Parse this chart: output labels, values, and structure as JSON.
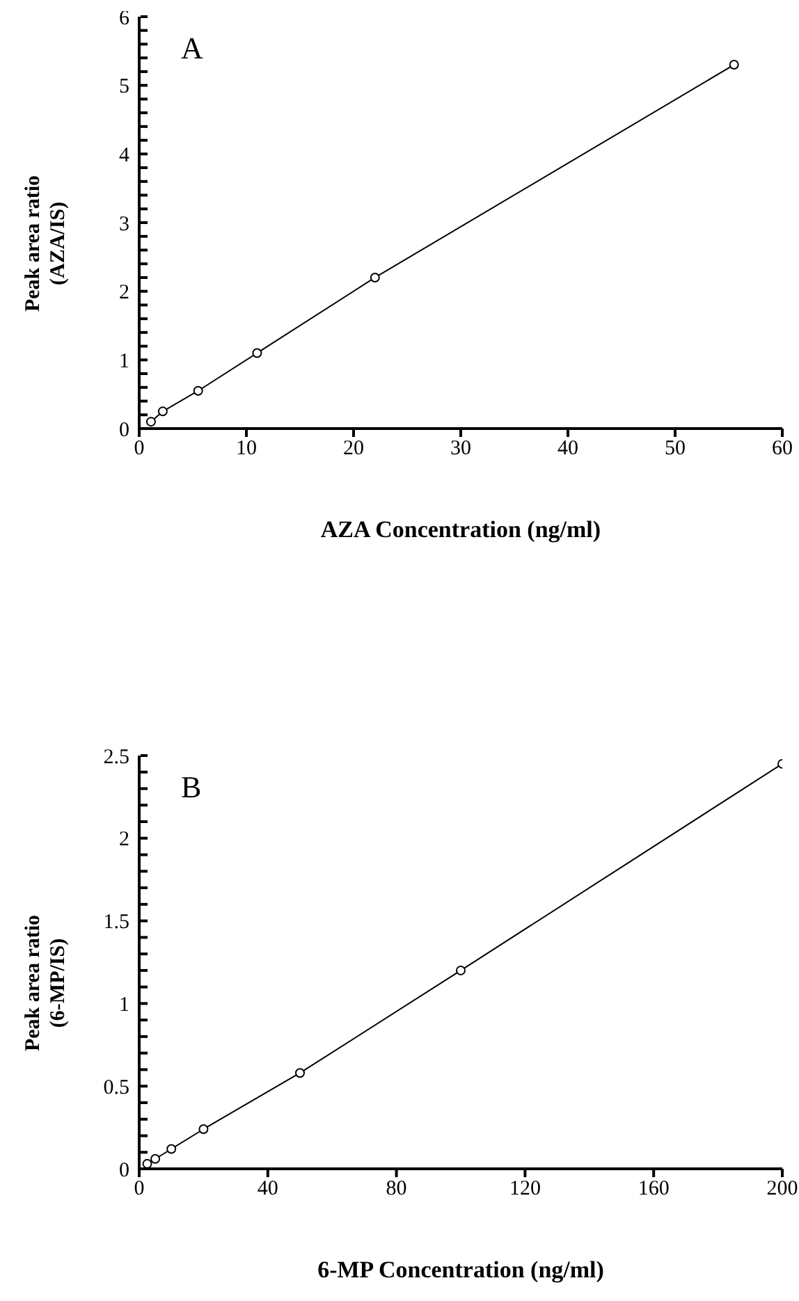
{
  "chart_data": [
    {
      "type": "line",
      "title": "A",
      "xlabel": "AZA Concentration (ng/ml)",
      "ylabel": "Peak area ratio (AZA/IS)",
      "marker": "circle",
      "line_style": "solid",
      "grid": false,
      "series": [
        {
          "color": "#000000",
          "x": [
            1.1,
            2.2,
            5.5,
            11,
            22,
            55.5
          ],
          "values": [
            0.1,
            0.25,
            0.55,
            1.1,
            2.2,
            5.3
          ]
        }
      ],
      "xlim": [
        0,
        60
      ],
      "xticks": [
        0,
        10,
        20,
        30,
        40,
        50,
        60
      ],
      "ylim": [
        0,
        6
      ],
      "yticks": [
        0,
        {
          "value": 0.2,
          "label": null
        },
        {
          "value": 0.4,
          "label": null
        },
        {
          "value": 0.6,
          "label": null
        },
        {
          "value": 0.8,
          "label": null
        },
        1,
        {
          "value": 1.2,
          "label": null
        },
        {
          "value": 1.4,
          "label": null
        },
        {
          "value": 1.6,
          "label": null
        },
        {
          "value": 1.8,
          "label": null
        },
        2,
        {
          "value": 2.2,
          "label": null
        },
        {
          "value": 2.4,
          "label": null
        },
        {
          "value": 2.6,
          "label": null
        },
        {
          "value": 2.8,
          "label": null
        },
        3,
        {
          "value": 3.2,
          "label": null
        },
        {
          "value": 3.4,
          "label": null
        },
        {
          "value": 3.6,
          "label": null
        },
        {
          "value": 3.8,
          "label": null
        },
        4,
        {
          "value": 4.2,
          "label": null
        },
        {
          "value": 4.4,
          "label": null
        },
        {
          "value": 4.6,
          "label": null
        },
        {
          "value": 4.8,
          "label": null
        },
        5,
        {
          "value": 5.2,
          "label": null
        },
        {
          "value": 5.4,
          "label": null
        },
        {
          "value": 5.6,
          "label": null
        },
        {
          "value": 5.8,
          "label": null
        },
        6
      ]
    },
    {
      "type": "line",
      "title": "B",
      "xlabel": "6-MP Concentration (ng/ml)",
      "ylabel": "Peak area ratio (6-MP/IS)",
      "marker": "circle",
      "line_style": "solid",
      "grid": false,
      "series": [
        {
          "color": "#000000",
          "x": [
            2.5,
            5,
            10,
            20,
            50,
            100,
            200
          ],
          "values": [
            0.03,
            0.06,
            0.12,
            0.24,
            0.58,
            1.2,
            2.45
          ]
        }
      ],
      "xlim": [
        0,
        200
      ],
      "xticks": [
        0,
        40,
        80,
        120,
        160,
        200
      ],
      "ylim": [
        0,
        2.5
      ],
      "yticks": [
        0,
        {
          "value": 0.1,
          "label": null
        },
        {
          "value": 0.2,
          "label": null
        },
        {
          "value": 0.3,
          "label": null
        },
        {
          "value": 0.4,
          "label": null
        },
        0.5,
        {
          "value": 0.6,
          "label": null
        },
        {
          "value": 0.7,
          "label": null
        },
        {
          "value": 0.8,
          "label": null
        },
        {
          "value": 0.9,
          "label": null
        },
        1,
        {
          "value": 1.1,
          "label": null
        },
        {
          "value": 1.2,
          "label": null
        },
        {
          "value": 1.3,
          "label": null
        },
        {
          "value": 1.4,
          "label": null
        },
        1.5,
        {
          "value": 1.6,
          "label": null
        },
        {
          "value": 1.7,
          "label": null
        },
        {
          "value": 1.8,
          "label": null
        },
        {
          "value": 1.9,
          "label": null
        },
        2,
        {
          "value": 2.1,
          "label": null
        },
        {
          "value": 2.2,
          "label": null
        },
        {
          "value": 2.3,
          "label": null
        },
        {
          "value": 2.4,
          "label": null
        },
        2.5
      ]
    }
  ]
}
